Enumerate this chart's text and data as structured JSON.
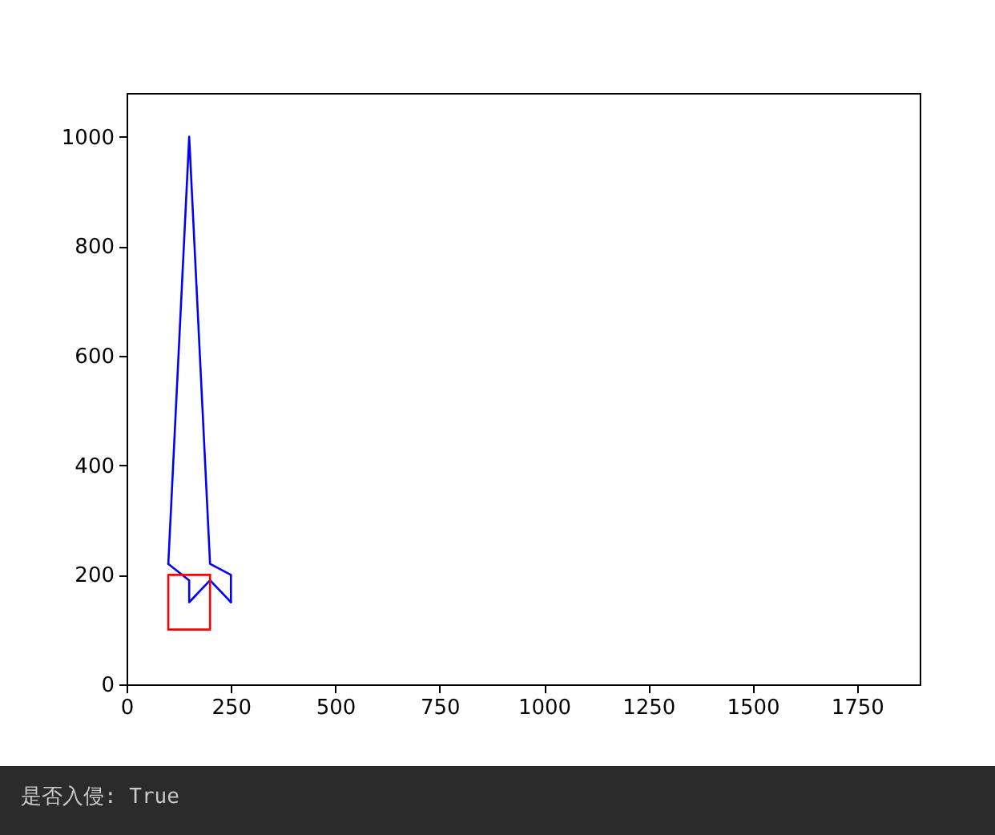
{
  "chart_data": {
    "type": "line",
    "series": [
      {
        "color": "#0000ff",
        "x": [
          100,
          150,
          200,
          250,
          250
        ],
        "values": [
          220,
          1000,
          220,
          200,
          150
        ]
      },
      {
        "color": "#0000ff",
        "x": [
          250,
          200,
          150,
          150,
          100
        ],
        "values": [
          150,
          190,
          150,
          190,
          220
        ]
      },
      {
        "color": "#ff0000",
        "x": [
          100,
          200,
          200
        ],
        "values": [
          100,
          100,
          200
        ]
      },
      {
        "color": "#ff0000",
        "x": [
          200,
          100,
          100
        ],
        "values": [
          200,
          200,
          100
        ]
      }
    ],
    "xlim": [
      0,
      1900
    ],
    "ylim": [
      0,
      1080
    ],
    "xticks": [
      0,
      250,
      500,
      750,
      1000,
      1250,
      1500,
      1750
    ],
    "yticks": [
      0,
      200,
      400,
      600,
      800,
      1000
    ],
    "annotations": [
      "是否入侵: True"
    ]
  }
}
